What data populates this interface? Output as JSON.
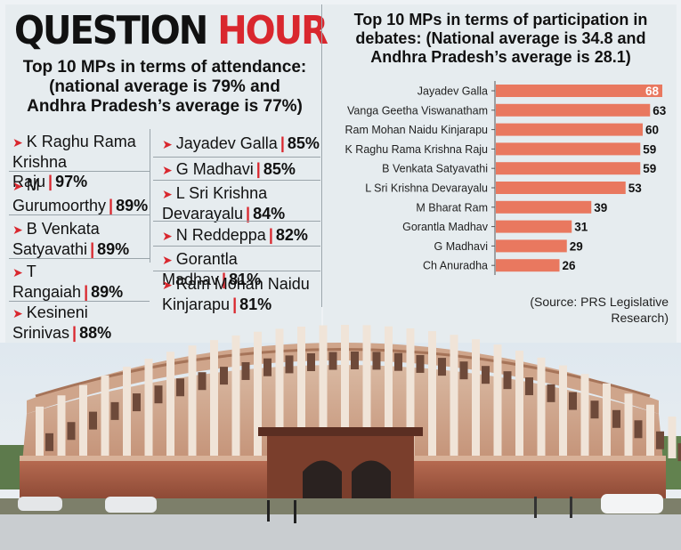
{
  "headline": {
    "part1": "QUESTION",
    "part2": "HOUR"
  },
  "colors": {
    "accent_red": "#d9272e",
    "bar_color": "#e9785f",
    "panel_bg": "#e6ecef"
  },
  "attendance": {
    "subtitle_line1": "Top 10 MPs in terms of attendance:",
    "subtitle_line2": "(national average is 79% and",
    "subtitle_line3": "Andhra Pradesh’s average is 77%)",
    "left_column": [
      {
        "name_line1": "K Raghu Rama",
        "name_line2": "Krishna Raju",
        "pct": "97%"
      },
      {
        "name_line1": "M Gurumoorthy",
        "name_line2": "",
        "pct": "89%"
      },
      {
        "name_line1": "B Venkata",
        "name_line2": "Satyavathi",
        "pct": "89%"
      },
      {
        "name_line1": "T Rangaiah",
        "name_line2": "",
        "pct": "89%"
      },
      {
        "name_line1": "Kesineni Srinivas",
        "name_line2": "",
        "pct": "88%"
      }
    ],
    "right_column": [
      {
        "name_line1": "Jayadev Galla",
        "name_line2": "",
        "pct": "85%"
      },
      {
        "name_line1": "G Madhavi",
        "name_line2": "",
        "pct": "85%"
      },
      {
        "name_line1": "L Sri Krishna",
        "name_line2": "Devarayalu",
        "pct": "84%"
      },
      {
        "name_line1": "N Reddeppa",
        "name_line2": "",
        "pct": "82%"
      },
      {
        "name_line1": "Gorantla Madhav",
        "name_line2": "",
        "pct": "81%"
      },
      {
        "name_line1": "Ram Mohan Naidu",
        "name_line2": "Kinjarapu",
        "pct": "81%"
      }
    ]
  },
  "chart_data": {
    "type": "bar",
    "orientation": "horizontal",
    "title_line1": "Top 10 MPs in terms of participation in",
    "title_line2": "debates: (National average is 34.8 and",
    "title_line3": "Andhra Pradesh’s average is 28.1)",
    "categories": [
      "Jayadev Galla",
      "Vanga Geetha Viswanatham",
      "Ram Mohan Naidu Kinjarapu",
      "K Raghu Rama Krishna Raju",
      "B Venkata Satyavathi",
      "L Sri Krishna Devarayalu",
      "M Bharat Ram",
      "Gorantla Madhav",
      "G Madhavi",
      "Ch Anuradha"
    ],
    "values": [
      68,
      63,
      60,
      59,
      59,
      53,
      39,
      31,
      29,
      26
    ],
    "xlim": [
      0,
      70
    ],
    "grid": false,
    "legend": "none"
  },
  "source": {
    "line1": "(Source: PRS Legislative",
    "line2": "Research)"
  }
}
